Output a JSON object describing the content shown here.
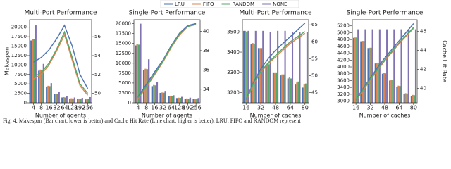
{
  "chart_data": [
    {
      "type": "bar",
      "title": "Multi-Port Performance",
      "xlabel": "Number of agents",
      "ylabel": "Makespan",
      "categories": [
        4,
        8,
        16,
        32,
        64,
        128,
        192,
        256
      ],
      "ylim": [
        0,
        22000
      ],
      "yticks": [
        0,
        2500,
        5000,
        7500,
        10000,
        12500,
        15000,
        17500,
        20000
      ],
      "y2lim": [
        49,
        57.8
      ],
      "y2ticks": [
        50,
        52,
        54,
        56
      ],
      "series": [
        {
          "name": "LRU",
          "color": "#4c72b0",
          "values": [
            16500,
            8500,
            4300,
            2300,
            1400,
            1100,
            1000,
            900
          ]
        },
        {
          "name": "FIFO",
          "color": "#dd8452",
          "values": [
            16800,
            8800,
            4500,
            2400,
            1500,
            1200,
            1050,
            1000
          ]
        },
        {
          "name": "RANDOM",
          "color": "#55a868",
          "values": [
            16800,
            8700,
            4400,
            2300,
            1400,
            1100,
            1000,
            950
          ]
        },
        {
          "name": "NONE",
          "color": "#8172b2",
          "values": [
            20500,
            10300,
            5200,
            2800,
            1700,
            1400,
            1300,
            1500
          ]
        },
        {
          "name": "LRU",
          "type": "line",
          "axis": "y2",
          "color": "#4c72b0",
          "values": [
            53.3,
            53.8,
            54.6,
            55.8,
            57.2,
            55,
            52,
            50.5
          ]
        },
        {
          "name": "FIFO",
          "type": "line",
          "axis": "y2",
          "color": "#dd8452",
          "values": [
            51.5,
            52,
            53,
            54.5,
            56.2,
            53.5,
            50.8,
            49.8
          ]
        },
        {
          "name": "RANDOM",
          "type": "line",
          "axis": "y2",
          "color": "#55a868",
          "values": [
            51.7,
            52.2,
            53.2,
            54.7,
            56.5,
            53.8,
            51,
            50
          ]
        }
      ]
    },
    {
      "type": "bar",
      "title": "Single-Port Performance",
      "xlabel": "Number of agents",
      "categories": [
        4,
        8,
        16,
        32,
        64,
        128,
        192,
        256
      ],
      "ylim": [
        0,
        21000
      ],
      "yticks": [
        0,
        2500,
        5000,
        7500,
        10000,
        12500,
        15000,
        17500,
        20000
      ],
      "y2lim": [
        32.6,
        41.2
      ],
      "y2ticks": [
        34,
        36,
        38,
        40
      ],
      "series": [
        {
          "name": "LRU",
          "color": "#4c72b0",
          "values": [
            14500,
            8300,
            4200,
            2500,
            1600,
            1200,
            1000,
            900
          ]
        },
        {
          "name": "FIFO",
          "color": "#dd8452",
          "values": [
            14800,
            8600,
            4500,
            2600,
            1700,
            1300,
            1100,
            1000
          ]
        },
        {
          "name": "RANDOM",
          "color": "#55a868",
          "values": [
            14700,
            8500,
            4400,
            2550,
            1650,
            1250,
            1050,
            950
          ]
        },
        {
          "name": "NONE",
          "color": "#8172b2",
          "values": [
            20000,
            11000,
            5200,
            3000,
            1900,
            1500,
            1300,
            1200
          ]
        },
        {
          "name": "LRU",
          "type": "line",
          "axis": "y2",
          "color": "#4c72b0",
          "values": [
            33.2,
            34.5,
            35.8,
            37,
            38.5,
            39.8,
            40.6,
            40.8
          ]
        },
        {
          "name": "FIFO",
          "type": "line",
          "axis": "y2",
          "color": "#dd8452",
          "values": [
            33,
            34.2,
            35.5,
            36.8,
            38.3,
            39.6,
            40.5,
            40.7
          ]
        },
        {
          "name": "RANDOM",
          "type": "line",
          "axis": "y2",
          "color": "#55a868",
          "values": [
            33.1,
            34.3,
            35.6,
            36.9,
            38.4,
            39.7,
            40.5,
            40.7
          ]
        }
      ]
    },
    {
      "type": "bar",
      "title": "Multi-Port Performance",
      "xlabel": "Number of caches",
      "categories": [
        16,
        null,
        32,
        null,
        48,
        null,
        64,
        null,
        80
      ],
      "ylim": [
        3150,
        3560
      ],
      "yticks": [
        3200,
        3300,
        3400,
        3500
      ],
      "y2lim": [
        42,
        66.5
      ],
      "y2ticks": [
        45,
        50,
        55,
        60,
        65
      ],
      "series": [
        {
          "name": "LRU",
          "color": "#4c72b0",
          "values": [
            3505,
            3440,
            3420,
            3330,
            3300,
            3285,
            3270,
            3240,
            3225
          ]
        },
        {
          "name": "FIFO",
          "color": "#dd8452",
          "values": [
            3505,
            3445,
            3420,
            3335,
            3300,
            3290,
            3275,
            3250,
            3240
          ]
        },
        {
          "name": "RANDOM",
          "color": "#55a868",
          "values": [
            3500,
            3440,
            3420,
            3340,
            3300,
            3290,
            3270,
            3255,
            3245
          ]
        },
        {
          "name": "NONE",
          "color": "#8172b2",
          "values": [
            3505,
            3505,
            3505,
            3500,
            3505,
            3505,
            3500,
            3500,
            3500
          ]
        },
        {
          "name": "LRU",
          "type": "line",
          "axis": "y2",
          "color": "#4c72b0",
          "values": [
            43,
            48,
            52,
            55,
            57.5,
            59.5,
            61.5,
            63.5,
            65.5
          ]
        },
        {
          "name": "FIFO",
          "type": "line",
          "axis": "y2",
          "color": "#dd8452",
          "values": [
            42.5,
            47.5,
            51,
            53.5,
            55.5,
            57.5,
            59.5,
            61,
            62.5
          ]
        },
        {
          "name": "RANDOM",
          "type": "line",
          "axis": "y2",
          "color": "#55a868",
          "values": [
            42.8,
            47.7,
            51.2,
            53.8,
            56,
            58,
            60,
            61.5,
            63
          ]
        }
      ]
    },
    {
      "type": "bar",
      "title": "Single-Port Performance",
      "xlabel": "Number of caches",
      "y2label": "Cache Hit Rate",
      "categories": [
        16,
        null,
        32,
        null,
        48,
        null,
        64,
        null,
        80
      ],
      "ylim": [
        2950,
        5380
      ],
      "yticks": [
        3000,
        3200,
        3400,
        3600,
        3800,
        4000,
        4200,
        4400,
        4600,
        4800,
        5000,
        5200
      ],
      "y2lim": [
        38.5,
        47.2
      ],
      "y2ticks": [
        40,
        42,
        44,
        46
      ],
      "series": [
        {
          "name": "LRU",
          "color": "#4c72b0",
          "values": [
            4850,
            4750,
            4550,
            4100,
            3800,
            3600,
            3420,
            3200,
            3150
          ]
        },
        {
          "name": "FIFO",
          "color": "#dd8452",
          "values": [
            4860,
            4760,
            4560,
            4120,
            3820,
            3620,
            3450,
            3230,
            3180
          ]
        },
        {
          "name": "RANDOM",
          "color": "#55a868",
          "values": [
            4860,
            4760,
            4560,
            4110,
            3810,
            3610,
            3440,
            3220,
            3170
          ]
        },
        {
          "name": "NONE",
          "color": "#8172b2",
          "values": [
            5100,
            5100,
            5100,
            5100,
            5100,
            5100,
            5100,
            5100,
            5100
          ]
        },
        {
          "name": "LRU",
          "type": "line",
          "axis": "y2",
          "color": "#4c72b0",
          "values": [
            38.8,
            40,
            41.1,
            42.2,
            43.2,
            44.1,
            45,
            45.9,
            46.8
          ]
        },
        {
          "name": "FIFO",
          "type": "line",
          "axis": "y2",
          "color": "#dd8452",
          "values": [
            38.7,
            39.8,
            40.9,
            41.9,
            42.9,
            43.8,
            44.7,
            45.5,
            46.3
          ]
        },
        {
          "name": "RANDOM",
          "type": "line",
          "axis": "y2",
          "color": "#55a868",
          "values": [
            38.75,
            39.9,
            41,
            42,
            43,
            43.9,
            44.8,
            45.6,
            46.4
          ]
        }
      ]
    }
  ],
  "caption": "Fig. 4: Makespan (Bar chart, lower is better) and Cache Hit Rate (Line chart, higher is better). LRU, FIFO and RANDOM represent"
}
